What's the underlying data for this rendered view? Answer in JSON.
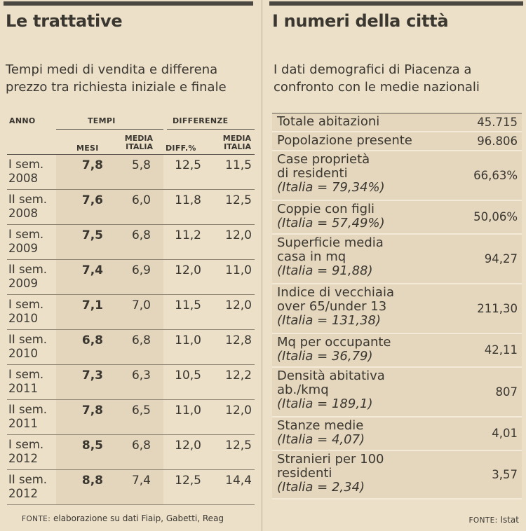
{
  "left": {
    "title": "Le trattative",
    "subtitle_line1": "Tempi medi di vendita e differena",
    "subtitle_line2": "prezzo tra richiesta iniziale e finale",
    "headers": {
      "anno": "ANNO",
      "tempi": "TEMPI",
      "differenze": "DIFFERENZE",
      "mesi": "MESI",
      "media_italia_1": "MEDIA",
      "media_italia_2": "ITALIA",
      "diff_pct": "DIFF.%",
      "media_italia2_1": "MEDIA",
      "media_italia2_2": "ITALIA"
    },
    "rows": [
      {
        "anno1": "I sem.",
        "anno2": "2008",
        "mesi": "7,8",
        "media": "5,8",
        "diff": "12,5",
        "media_diff": "11,5"
      },
      {
        "anno1": "II sem.",
        "anno2": "2008",
        "mesi": "7,6",
        "media": "6,0",
        "diff": "11,8",
        "media_diff": "12,5"
      },
      {
        "anno1": "I sem.",
        "anno2": "2009",
        "mesi": "7,5",
        "media": "6,8",
        "diff": "11,2",
        "media_diff": "12,0"
      },
      {
        "anno1": "II sem.",
        "anno2": "2009",
        "mesi": "7,4",
        "media": "6,9",
        "diff": "12,0",
        "media_diff": "11,0"
      },
      {
        "anno1": "I sem.",
        "anno2": "2010",
        "mesi": "7,1",
        "media": "7,0",
        "diff": "11,5",
        "media_diff": "12,0"
      },
      {
        "anno1": "II sem.",
        "anno2": "2010",
        "mesi": "6,8",
        "media": "6,8",
        "diff": "11,0",
        "media_diff": "12,8"
      },
      {
        "anno1": "I sem.",
        "anno2": "2011",
        "mesi": "7,3",
        "media": "6,3",
        "diff": "10,5",
        "media_diff": "12,2"
      },
      {
        "anno1": "II sem.",
        "anno2": "2011",
        "mesi": "7,8",
        "media": "6,5",
        "diff": "11,0",
        "media_diff": "12,0"
      },
      {
        "anno1": "I sem.",
        "anno2": "2012",
        "mesi": "8,5",
        "media": "6,8",
        "diff": "12,0",
        "media_diff": "12,5"
      },
      {
        "anno1": "II sem.",
        "anno2": "2012",
        "mesi": "8,8",
        "media": "7,4",
        "diff": "12,5",
        "media_diff": "14,4"
      }
    ],
    "source_label": "FONTE:",
    "source_text": " elaborazione su dati Fiaip, Gabetti, Reag"
  },
  "right": {
    "title": "I numeri della città",
    "subtitle_line1": "I dati demografici di Piacenza a",
    "subtitle_line2": "confronto con le medie nazionali",
    "rows": [
      {
        "lines": [
          "Totale abitazioni"
        ],
        "italia": "",
        "value": "45.715"
      },
      {
        "lines": [
          "Popolazione presente"
        ],
        "italia": "",
        "value": "96.806"
      },
      {
        "lines": [
          "Case proprietà",
          "di residenti"
        ],
        "italia": "(Italia = 79,34%)",
        "value": "66,63%"
      },
      {
        "lines": [
          "Coppie con figli"
        ],
        "italia": "(Italia = 57,49%)",
        "value": "50,06%"
      },
      {
        "lines": [
          "Superficie media",
          "casa in mq"
        ],
        "italia": "(Italia = 91,88)",
        "value": "94,27"
      },
      {
        "lines": [
          "Indice di vecchiaia",
          "over 65/under 13"
        ],
        "italia": "(Italia = 131,38)",
        "value": "211,30"
      },
      {
        "lines": [
          "Mq per occupante"
        ],
        "italia": "(Italia = 36,79)",
        "value": "42,11"
      },
      {
        "lines": [
          "Densità abitativa",
          "ab./kmq"
        ],
        "italia": "(Italia = 189,1)",
        "value": "807"
      },
      {
        "lines": [
          "Stanze medie"
        ],
        "italia": "(Italia = 4,07)",
        "value": "4,01"
      },
      {
        "lines": [
          "Stranieri per 100",
          "residenti"
        ],
        "italia": "(Italia = 2,34)",
        "value": "3,57"
      }
    ],
    "source_label": "FONTE:",
    "source_text": " Istat"
  }
}
